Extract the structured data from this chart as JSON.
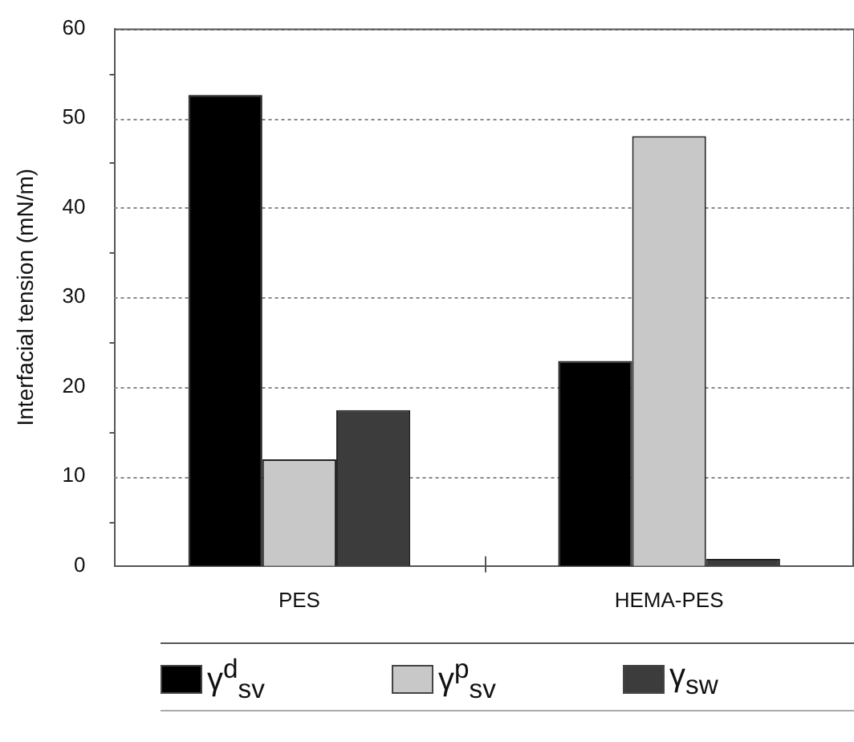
{
  "chart_data": {
    "type": "bar",
    "ylabel": "Interfacial tension (mN/m)",
    "categories": [
      "PES",
      "HEMA-PES"
    ],
    "series": [
      {
        "name": "γ$^{d}$$_{sv}$",
        "color": "#000000",
        "values": [
          52.6,
          22.9
        ]
      },
      {
        "name": "γ$^{p}$$_{sv}$",
        "color": "#c8c8c8",
        "values": [
          11.9,
          48.0
        ]
      },
      {
        "name": "γ$_{sw}$",
        "color": "#3c3c3c",
        "values": [
          17.4,
          0.8
        ]
      }
    ],
    "ylim": [
      0,
      60
    ],
    "yticks": [
      0,
      10,
      20,
      30,
      40,
      50,
      60
    ],
    "grid": "y",
    "legend": "bottom"
  }
}
